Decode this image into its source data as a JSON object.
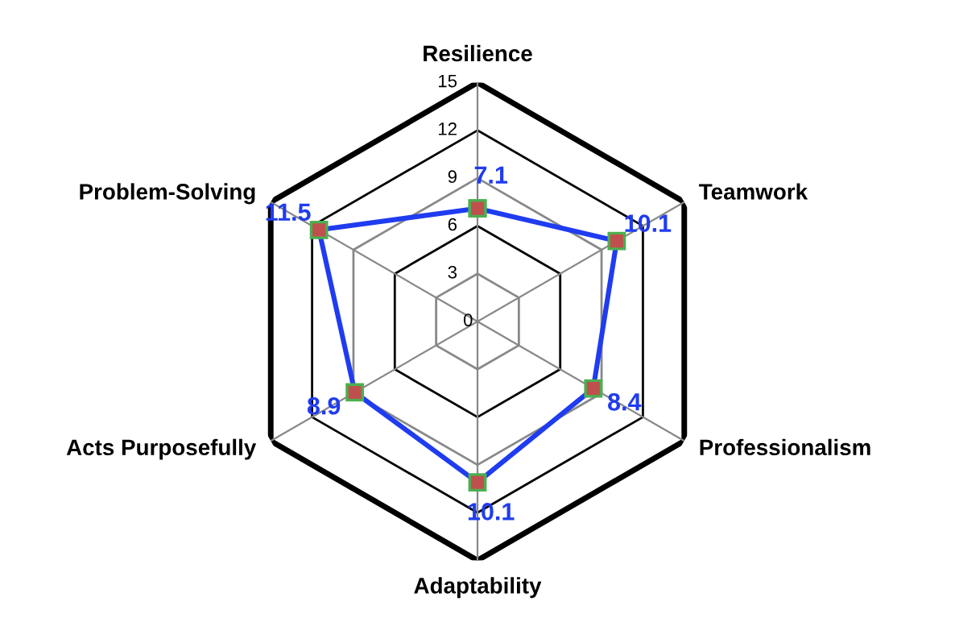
{
  "chart_data": {
    "type": "radar",
    "categories": [
      "Resilience",
      "Teamwork",
      "Professionalism",
      "Adaptability",
      "Acts Purposefully",
      "Problem-Solving"
    ],
    "series": [
      {
        "color": "#1f3cf0",
        "values": [
          7.1,
          10.1,
          8.4,
          10.1,
          8.9,
          11.5
        ]
      }
    ],
    "ylim": [
      0,
      15
    ],
    "yticks": [
      0,
      3,
      6,
      9,
      12,
      15
    ],
    "data_labels": true,
    "marker": "square",
    "grid": true
  }
}
